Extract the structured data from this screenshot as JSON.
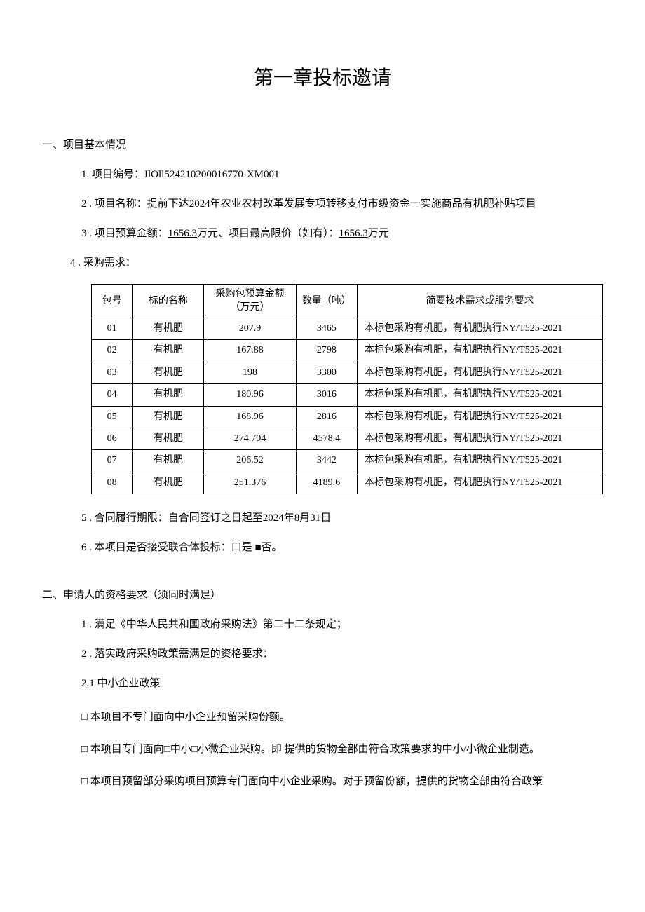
{
  "title": "第一章投标邀请",
  "section1": {
    "heading": "一、项目基本情况",
    "item1_label": "1. 项目编号：",
    "item1_value": "IlOll524210200016770-XM001",
    "item2_label": "2 . 项目名称：",
    "item2_value": "提前下达2024年农业农村改革发展专项转移支付市级资金一实施商品有机肥补贴项目",
    "item3_label": "3  . 项目预算金额：",
    "item3_budget": "1656.3",
    "item3_mid": "万元、项目最高限价（如有）：",
    "item3_max": "1656.3",
    "item3_suffix": "万元",
    "item4": "4  . 采购需求：",
    "table": {
      "headers": {
        "h1": "包号",
        "h2": "标的名称",
        "h3": "采购包预算金额（万元）",
        "h4": "数量（吨）",
        "h5": "简要技术需求或服务要求"
      },
      "rows": [
        {
          "no": "01",
          "name": "有机肥",
          "budget": "207.9",
          "qty": "3465",
          "req": "本标包采购有机肥，有机肥执行NY/T525-2021"
        },
        {
          "no": "02",
          "name": "有机肥",
          "budget": "167.88",
          "qty": "2798",
          "req": "本标包采购有机肥，有机肥执行NY/T525-2021"
        },
        {
          "no": "03",
          "name": "有机肥",
          "budget": "198",
          "qty": "3300",
          "req": "本标包采购有机肥，有机肥执行NY/T525-2021"
        },
        {
          "no": "04",
          "name": "有机肥",
          "budget": "180.96",
          "qty": "3016",
          "req": "本标包采购有机肥，有机肥执行NY/T525-2021"
        },
        {
          "no": "05",
          "name": "有机肥",
          "budget": "168.96",
          "qty": "2816",
          "req": "本标包采购有机肥，有机肥执行NY/T525-2021"
        },
        {
          "no": "06",
          "name": "有机肥",
          "budget": "274.704",
          "qty": "4578.4",
          "req": "本标包采购有机肥，有机肥执行NY/T525-2021"
        },
        {
          "no": "07",
          "name": "有机肥",
          "budget": "206.52",
          "qty": "3442",
          "req": "本标包采购有机肥，有机肥执行NY/T525-2021"
        },
        {
          "no": "08",
          "name": "有机肥",
          "budget": "251.376",
          "qty": "4189.6",
          "req": "本标包采购有机肥，有机肥执行NY/T525-2021"
        }
      ]
    },
    "item5": "5  . 合同履行期限：自合同签订之日起至2024年8月31日",
    "item6": "6  . 本项目是否接受联合体投标：口是 ■否。"
  },
  "section2": {
    "heading": "二、申请人的资格要求（须同时满足）",
    "item1": "1 . 满足《中华人民共和国政府采购法》第二十二条规定；",
    "item2": "2  . 落实政府采购政策需满足的资格要求：",
    "item2_1": "2.1  中小企业政策",
    "cb1": "□ 本项目不专门面向中小企业预留采购份额。",
    "cb2": "□ 本项目专门面向□中小□小微企业采购。即 提供的货物全部由符合政策要求的中小/小微企业制造。",
    "cb3": "□ 本项目预留部分采购项目预算专门面向中小企业采购。对于预留份额，提供的货物全部由符合政策"
  }
}
